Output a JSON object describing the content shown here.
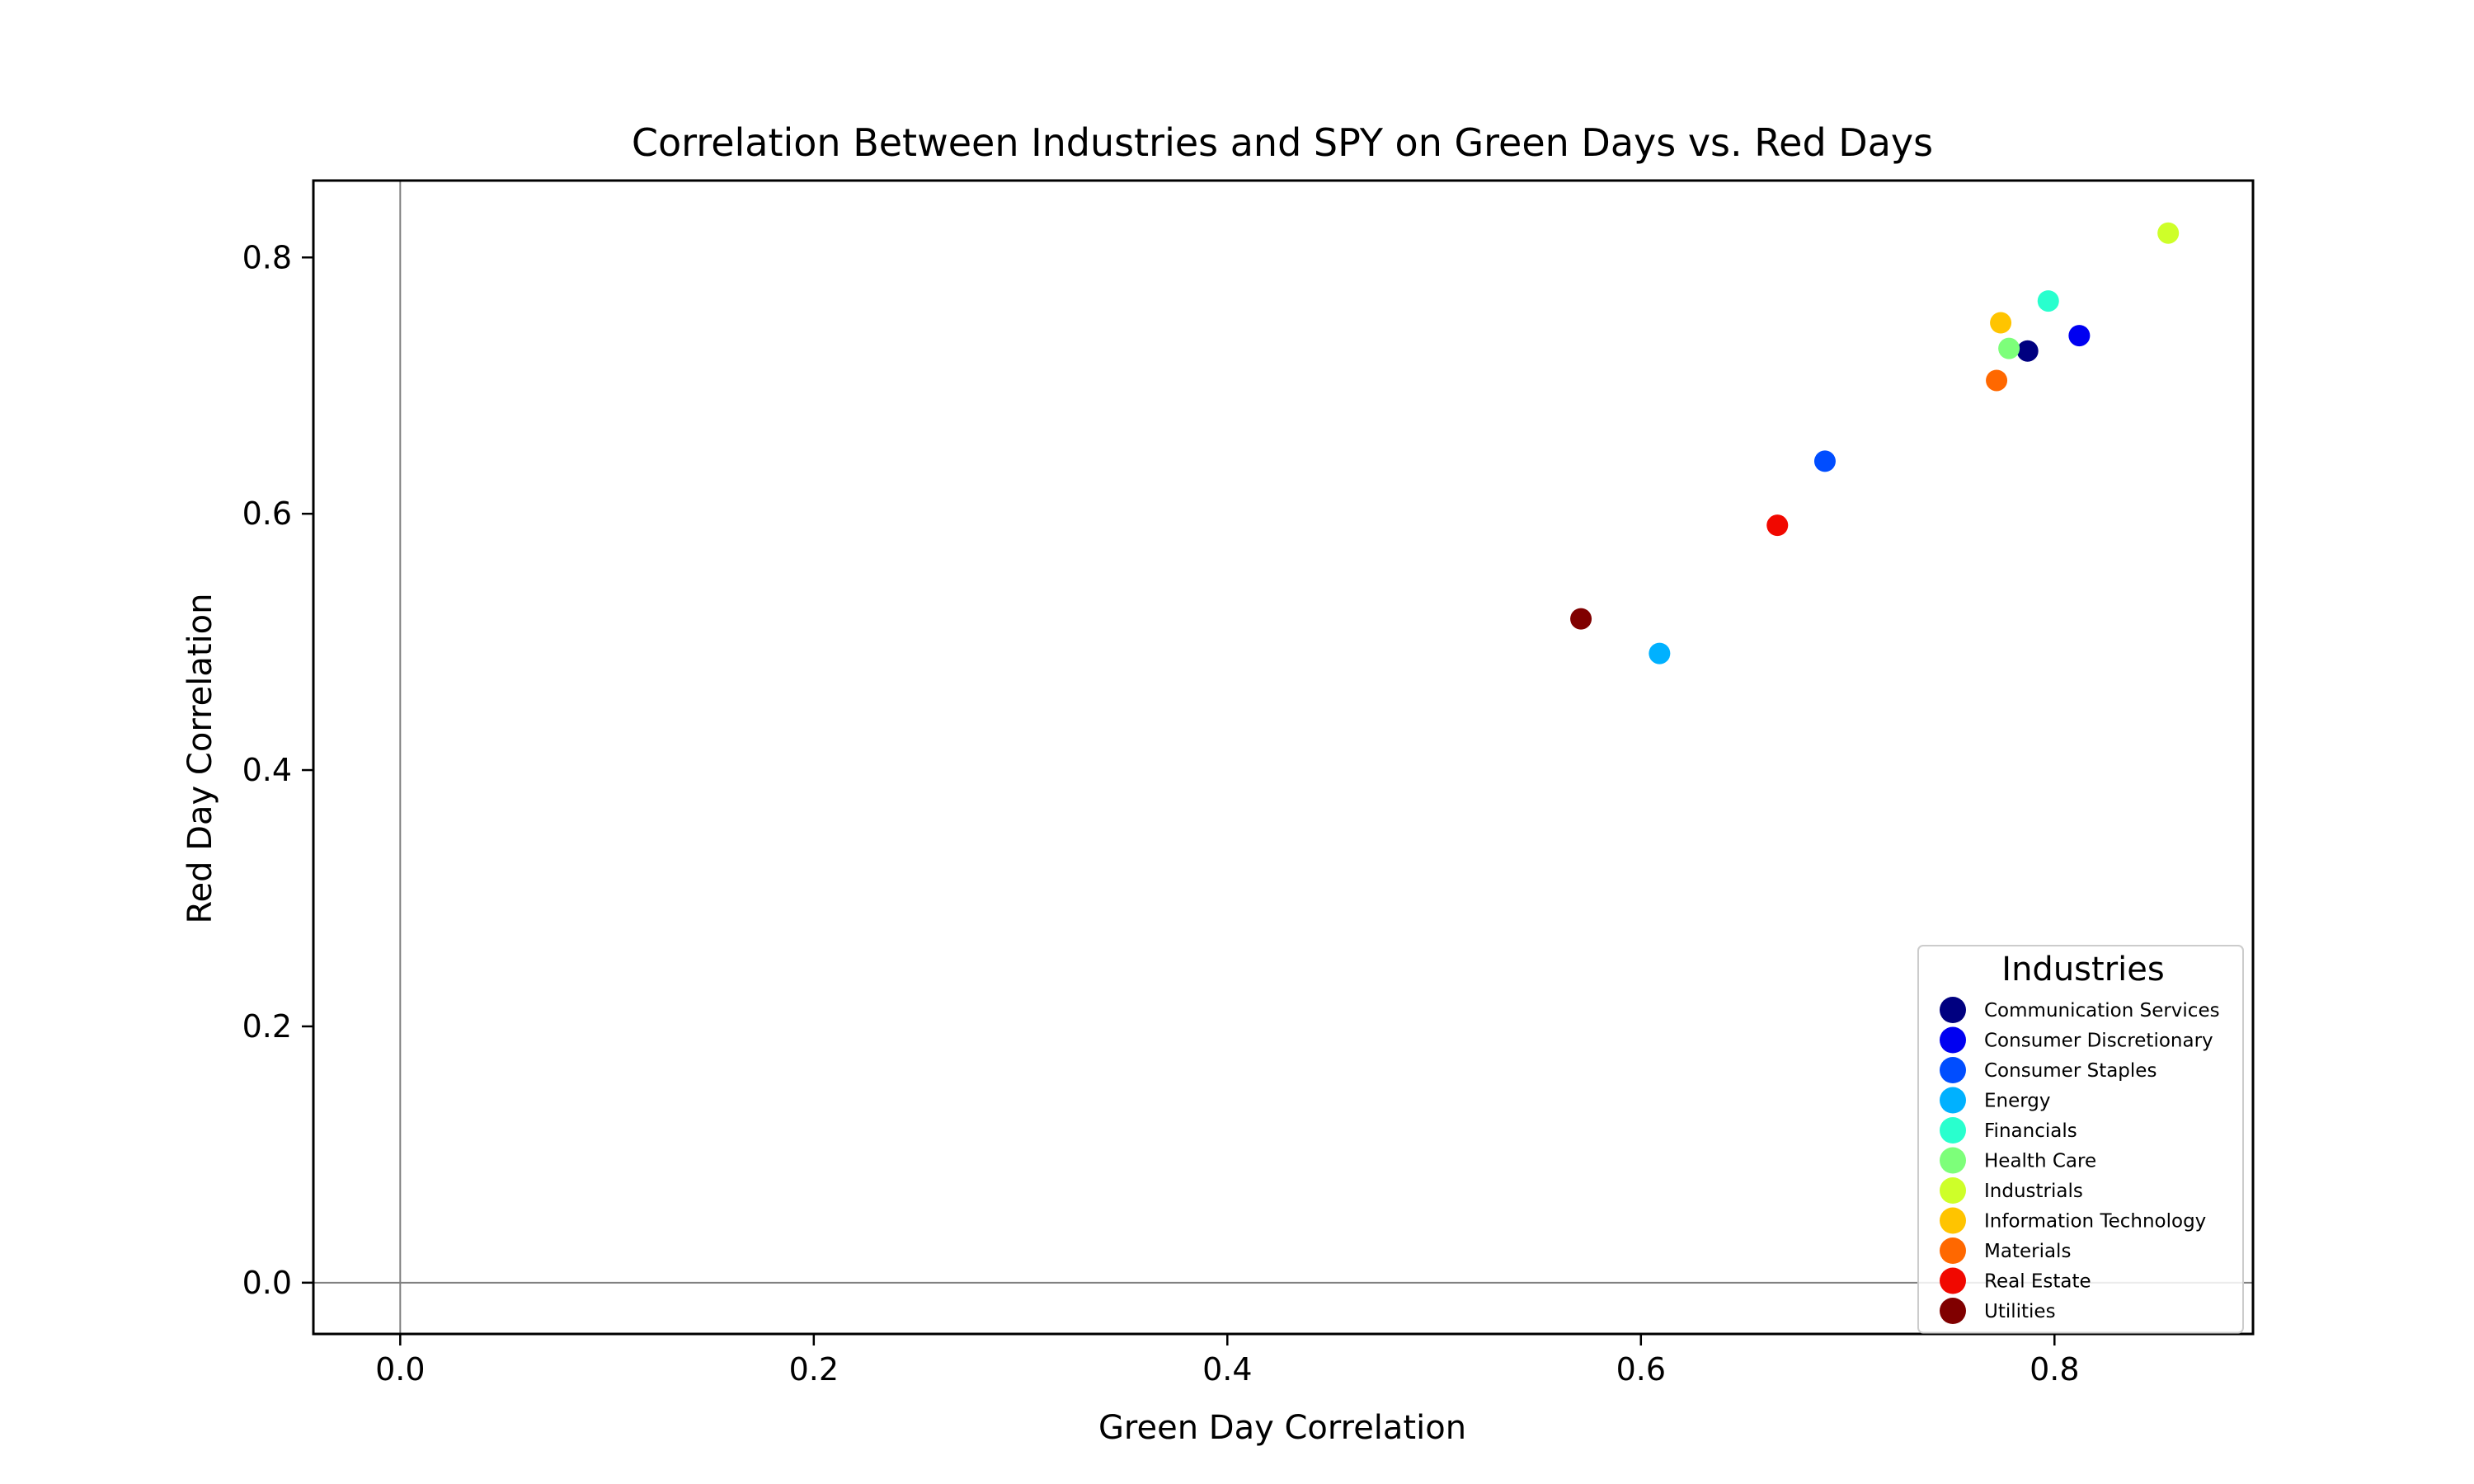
{
  "chart_data": {
    "type": "scatter",
    "title": "Correlation Between Industries and SPY on Green Days vs. Red Days",
    "xlabel": "Green Day Correlation",
    "ylabel": "Red Day Correlation",
    "xlim": [
      -0.042,
      0.896
    ],
    "ylim": [
      -0.04,
      0.86
    ],
    "xticks": [
      0.0,
      0.2,
      0.4,
      0.6,
      0.8
    ],
    "yticks": [
      0.0,
      0.2,
      0.4,
      0.6,
      0.8
    ],
    "xtick_labels": [
      "0.0",
      "0.2",
      "0.4",
      "0.6",
      "0.8"
    ],
    "ytick_labels": [
      "0.0",
      "0.2",
      "0.4",
      "0.6",
      "0.8"
    ],
    "reference_lines": {
      "x": 0.0,
      "y": 0.0
    },
    "grid": false,
    "legend": {
      "title": "Industries",
      "placement": "lower-right"
    },
    "series": [
      {
        "name": "Communication Services",
        "color": "#000080",
        "x": 0.787,
        "y": 0.727
      },
      {
        "name": "Consumer Discretionary",
        "color": "#0000f1",
        "x": 0.812,
        "y": 0.739
      },
      {
        "name": "Consumer Staples",
        "color": "#004dff",
        "x": 0.689,
        "y": 0.641
      },
      {
        "name": "Energy",
        "color": "#00b1ff",
        "x": 0.609,
        "y": 0.491
      },
      {
        "name": "Financials",
        "color": "#29ffce",
        "x": 0.797,
        "y": 0.766
      },
      {
        "name": "Health Care",
        "color": "#7dff7a",
        "x": 0.778,
        "y": 0.729
      },
      {
        "name": "Industrials",
        "color": "#ceff29",
        "x": 0.855,
        "y": 0.819
      },
      {
        "name": "Information Technology",
        "color": "#ffc400",
        "x": 0.774,
        "y": 0.749
      },
      {
        "name": "Materials",
        "color": "#ff6800",
        "x": 0.772,
        "y": 0.704
      },
      {
        "name": "Real Estate",
        "color": "#f10800",
        "x": 0.666,
        "y": 0.591
      },
      {
        "name": "Utilities",
        "color": "#800000",
        "x": 0.571,
        "y": 0.518
      }
    ]
  }
}
